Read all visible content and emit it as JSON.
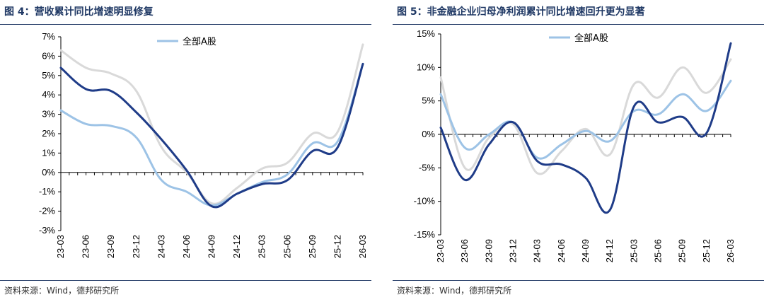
{
  "left": {
    "title": "图 4：营收累计同比增速明显修复",
    "source": "资料来源：Wind，德邦研究所",
    "chart_data": {
      "type": "line",
      "categories": [
        "23-03",
        "23-06",
        "23-09",
        "23-12",
        "24-03",
        "24-06",
        "24-09",
        "24-12",
        "25-03",
        "25-06",
        "25-09",
        "25-12",
        "26-03"
      ],
      "ylim": [
        -3,
        7
      ],
      "yticks": [
        -3,
        -2,
        -1,
        0,
        1,
        2,
        3,
        4,
        5,
        6,
        7
      ],
      "ytick_labels": [
        "-3%",
        "-2%",
        "-1%",
        "0%",
        "1%",
        "2%",
        "3%",
        "4%",
        "5%",
        "6%",
        "7%"
      ],
      "series": [
        {
          "name": "全部A股",
          "values": [
            3.2,
            2.5,
            2.4,
            1.8,
            -0.4,
            -1.0,
            -1.7,
            -1.1,
            -0.5,
            -0.1,
            1.5,
            1.6,
            5.6
          ],
          "color": "#9dc3e6",
          "legend": true
        },
        {
          "name": "",
          "values": [
            5.4,
            4.3,
            4.2,
            3.1,
            1.7,
            0.1,
            -1.75,
            -1.1,
            -0.6,
            -0.4,
            1.1,
            1.3,
            5.6
          ],
          "color": "#1f3c88",
          "legend": false
        },
        {
          "name": "",
          "values": [
            6.3,
            5.4,
            5.1,
            4.2,
            1.3,
            0.0,
            -1.6,
            -0.8,
            0.2,
            0.5,
            2.0,
            2.1,
            6.6
          ],
          "color": "#d9d9d9",
          "legend": false
        }
      ],
      "legend": {
        "label": "全部A股",
        "position": "top-center"
      }
    }
  },
  "right": {
    "title": "图 5：非金融企业归母净利润累计同比增速回升更为显著",
    "source": "资料来源：Wind，德邦研究所",
    "chart_data": {
      "type": "line",
      "categories": [
        "23-03",
        "23-06",
        "23-09",
        "23-12",
        "24-03",
        "24-06",
        "24-09",
        "24-12",
        "25-03",
        "25-06",
        "25-09",
        "25-12",
        "26-03"
      ],
      "ylim": [
        -15,
        15
      ],
      "yticks": [
        -15,
        -10,
        -5,
        0,
        5,
        10,
        15
      ],
      "ytick_labels": [
        "-15%",
        "-10%",
        "-5%",
        "0%",
        "5%",
        "10%",
        "15%"
      ],
      "series": [
        {
          "name": "全部A股",
          "values": [
            6.0,
            -2.0,
            0.0,
            1.8,
            -3.5,
            -1.5,
            0.5,
            -1.0,
            3.5,
            3.0,
            6.0,
            3.5,
            8.0
          ],
          "color": "#9dc3e6",
          "legend": true
        },
        {
          "name": "",
          "values": [
            1.0,
            -6.8,
            -1.5,
            1.8,
            -4.0,
            -4.5,
            -6.5,
            -11.3,
            4.2,
            1.8,
            2.6,
            0.2,
            13.6
          ],
          "color": "#1f3c88",
          "legend": false
        },
        {
          "name": "",
          "values": [
            8.5,
            -5.0,
            -0.5,
            1.5,
            -5.8,
            -2.5,
            0.8,
            -3.0,
            7.5,
            5.5,
            10.0,
            6.2,
            11.2
          ],
          "color": "#d9d9d9",
          "legend": false
        }
      ],
      "legend": {
        "label": "全部A股",
        "position": "top-center"
      }
    }
  }
}
